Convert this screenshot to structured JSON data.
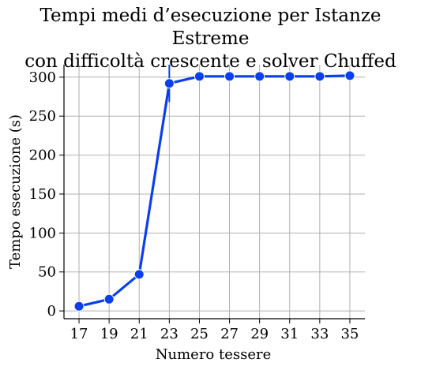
{
  "chart_data": {
    "type": "line",
    "title": "Tempi medi d’esecuzione per Istanze Estreme con difficoltà crescente e solver Chuffed",
    "title_lines": [
      "Tempi medi d’esecuzione per Istanze Estreme",
      "con difficoltà crescente e solver Chuffed"
    ],
    "xlabel": "Numero tessere",
    "ylabel": "Tempo esecuzione (s)",
    "x": [
      17,
      19,
      21,
      23,
      25,
      27,
      29,
      31,
      33,
      35
    ],
    "x_tick_labels": [
      "17",
      "19",
      "21",
      "23",
      "25",
      "27",
      "29",
      "31",
      "33",
      "35"
    ],
    "y_ticks": [
      0,
      50,
      100,
      150,
      200,
      250,
      300
    ],
    "y_tick_labels": [
      "0",
      "50",
      "100",
      "150",
      "200",
      "250",
      "300"
    ],
    "xlim": [
      16,
      36
    ],
    "ylim": [
      -10,
      316
    ],
    "series": [
      {
        "values": [
          6,
          15,
          47,
          292,
          301,
          301,
          301,
          301,
          301,
          302
        ],
        "error_bar": [
          null,
          null,
          null,
          [
            268,
            316
          ],
          null,
          null,
          null,
          null,
          null,
          null
        ]
      }
    ],
    "grid": true,
    "legend": "none",
    "colors": {
      "line": "#0a3ff0",
      "grid": "#b0b0b0",
      "axis": "#000000"
    }
  }
}
